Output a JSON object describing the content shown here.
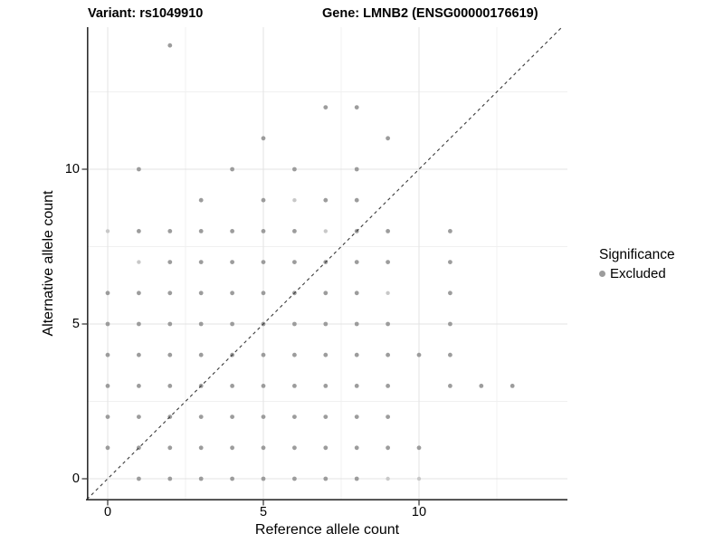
{
  "title": {
    "variant": "Variant: rs1049910",
    "gene": "Gene: LMNB2 (ENSG00000176619)"
  },
  "axes": {
    "x_label": "Reference allele count",
    "y_label": "Alternative allele count",
    "x_tick_labels": [
      "0",
      "5",
      "10"
    ],
    "y_tick_labels": [
      "0",
      "5",
      "10"
    ]
  },
  "legend": {
    "title": "Significance",
    "items": [
      {
        "label": "Excluded",
        "color": "#9c9c9c"
      }
    ]
  },
  "colors": {
    "point": "#9c9c9c",
    "point_faint": "#c8c8c8",
    "grid_major": "#e3e3e3",
    "grid_minor": "#f0f0f0",
    "axis_line": "#2f2f2f",
    "identity_line": "#3a3a3a",
    "background": "#ffffff"
  },
  "chart_data": {
    "type": "scatter",
    "title": "Variant: rs1049910   Gene: LMNB2 (ENSG00000176619)",
    "xlabel": "Reference allele count",
    "ylabel": "Alternative allele count",
    "xlim": [
      -0.7,
      14.8
    ],
    "ylim": [
      -0.7,
      14.6
    ],
    "x_ticks": [
      0,
      5,
      10
    ],
    "y_ticks": [
      0,
      5,
      10
    ],
    "x_minor_ticks": [
      2.5,
      7.5,
      12.5
    ],
    "y_minor_ticks": [
      2.5,
      7.5,
      12.5
    ],
    "grid": "major+minor",
    "legend_position": "right",
    "identity_line": {
      "style": "dashed",
      "equation": "y = x"
    },
    "series": [
      {
        "name": "Excluded",
        "color": "#9c9c9c",
        "points": [
          [
            1,
            0
          ],
          [
            2,
            0
          ],
          [
            3,
            0
          ],
          [
            4,
            0
          ],
          [
            5,
            0
          ],
          [
            6,
            0
          ],
          [
            7,
            0
          ],
          [
            8,
            0
          ],
          [
            0,
            1
          ],
          [
            1,
            1
          ],
          [
            2,
            1
          ],
          [
            3,
            1
          ],
          [
            4,
            1
          ],
          [
            5,
            1
          ],
          [
            6,
            1
          ],
          [
            7,
            1
          ],
          [
            8,
            1
          ],
          [
            9,
            1
          ],
          [
            10,
            1
          ],
          [
            0,
            2
          ],
          [
            1,
            2
          ],
          [
            2,
            2
          ],
          [
            3,
            2
          ],
          [
            4,
            2
          ],
          [
            5,
            2
          ],
          [
            6,
            2
          ],
          [
            7,
            2
          ],
          [
            8,
            2
          ],
          [
            9,
            2
          ],
          [
            0,
            3
          ],
          [
            1,
            3
          ],
          [
            2,
            3
          ],
          [
            3,
            3
          ],
          [
            4,
            3
          ],
          [
            5,
            3
          ],
          [
            6,
            3
          ],
          [
            7,
            3
          ],
          [
            8,
            3
          ],
          [
            9,
            3
          ],
          [
            11,
            3
          ],
          [
            12,
            3
          ],
          [
            13,
            3
          ],
          [
            0,
            4
          ],
          [
            1,
            4
          ],
          [
            2,
            4
          ],
          [
            3,
            4
          ],
          [
            4,
            4
          ],
          [
            5,
            4
          ],
          [
            6,
            4
          ],
          [
            7,
            4
          ],
          [
            8,
            4
          ],
          [
            9,
            4
          ],
          [
            10,
            4
          ],
          [
            11,
            4
          ],
          [
            0,
            5
          ],
          [
            1,
            5
          ],
          [
            2,
            5
          ],
          [
            3,
            5
          ],
          [
            4,
            5
          ],
          [
            5,
            5
          ],
          [
            6,
            5
          ],
          [
            7,
            5
          ],
          [
            8,
            5
          ],
          [
            9,
            5
          ],
          [
            11,
            5
          ],
          [
            0,
            6
          ],
          [
            1,
            6
          ],
          [
            2,
            6
          ],
          [
            3,
            6
          ],
          [
            4,
            6
          ],
          [
            5,
            6
          ],
          [
            6,
            6
          ],
          [
            7,
            6
          ],
          [
            8,
            6
          ],
          [
            11,
            6
          ],
          [
            2,
            7
          ],
          [
            3,
            7
          ],
          [
            4,
            7
          ],
          [
            5,
            7
          ],
          [
            6,
            7
          ],
          [
            7,
            7
          ],
          [
            8,
            7
          ],
          [
            9,
            7
          ],
          [
            11,
            7
          ],
          [
            1,
            8
          ],
          [
            2,
            8
          ],
          [
            3,
            8
          ],
          [
            4,
            8
          ],
          [
            5,
            8
          ],
          [
            6,
            8
          ],
          [
            8,
            8
          ],
          [
            9,
            8
          ],
          [
            11,
            8
          ],
          [
            3,
            9
          ],
          [
            5,
            9
          ],
          [
            7,
            9
          ],
          [
            8,
            9
          ],
          [
            1,
            10
          ],
          [
            4,
            10
          ],
          [
            6,
            10
          ],
          [
            8,
            10
          ],
          [
            5,
            11
          ],
          [
            9,
            11
          ],
          [
            7,
            12
          ],
          [
            8,
            12
          ],
          [
            2,
            14
          ]
        ],
        "points_faint": [
          [
            9,
            0
          ],
          [
            10,
            0
          ],
          [
            9,
            6
          ],
          [
            1,
            7
          ],
          [
            0,
            8
          ],
          [
            7,
            8
          ],
          [
            6,
            9
          ]
        ]
      }
    ]
  }
}
